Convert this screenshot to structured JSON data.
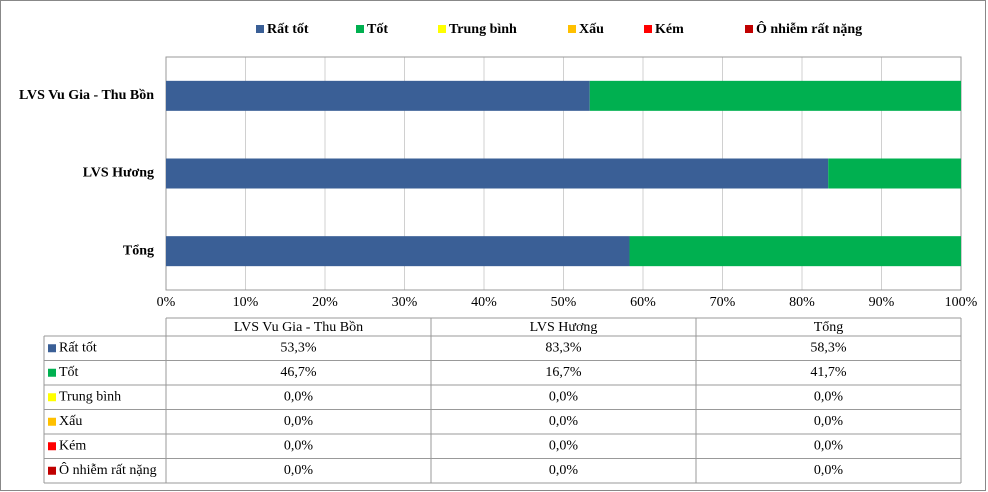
{
  "chart_data": {
    "type": "stacked_bar_horizontal",
    "categories": [
      "Tổng",
      "LVS Hương",
      "LVS Vu Gia - Thu Bồn"
    ],
    "series": [
      {
        "name": "Rất tốt",
        "color": "#3a5f96",
        "values": [
          58.3,
          83.3,
          53.3
        ],
        "value_labels": [
          "58,3%",
          "83,3%",
          "53,3%"
        ]
      },
      {
        "name": "Tốt",
        "color": "#00b050",
        "values": [
          41.7,
          16.7,
          46.7
        ],
        "value_labels": [
          "41,7%",
          "16,7%",
          "46,7%"
        ]
      },
      {
        "name": "Trung bình",
        "color": "#ffff00",
        "values": [
          0,
          0,
          0
        ],
        "value_labels": [
          "0,0%",
          "0,0%",
          "0,0%"
        ]
      },
      {
        "name": "Xấu",
        "color": "#ffc000",
        "values": [
          0,
          0,
          0
        ],
        "value_labels": [
          "0,0%",
          "0,0%",
          "0,0%"
        ]
      },
      {
        "name": "Kém",
        "color": "#ff0000",
        "values": [
          0,
          0,
          0
        ],
        "value_labels": [
          "0,0%",
          "0,0%",
          "0,0%"
        ]
      },
      {
        "name": "Ô nhiễm rất nặng",
        "color": "#c00000",
        "values": [
          0,
          0,
          0
        ],
        "value_labels": [
          "0,0%",
          "0,0%",
          "0,0%"
        ]
      }
    ],
    "xlim": [
      0,
      100
    ],
    "xticks": [
      {
        "value": 0,
        "label": "0%"
      },
      {
        "value": 10,
        "label": "10%"
      },
      {
        "value": 20,
        "label": "20%"
      },
      {
        "value": 30,
        "label": "30%"
      },
      {
        "value": 40,
        "label": "40%"
      },
      {
        "value": 50,
        "label": "50%"
      },
      {
        "value": 60,
        "label": "60%"
      },
      {
        "value": 70,
        "label": "70%"
      },
      {
        "value": 80,
        "label": "80%"
      },
      {
        "value": 90,
        "label": "90%"
      },
      {
        "value": 100,
        "label": "100%"
      }
    ],
    "grid": true,
    "legend": "top"
  }
}
